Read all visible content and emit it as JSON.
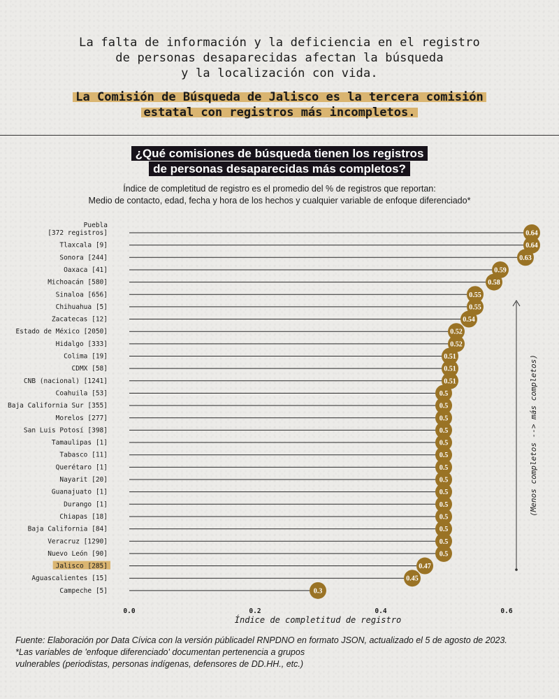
{
  "intro": {
    "lines": [
      "La falta de información y la deficiencia en el registro",
      "de personas desaparecidas afectan  la búsqueda",
      "y la localización con vida."
    ]
  },
  "highlight": {
    "lines": [
      "La Comisión de Búsqueda de Jalisco es la tercera comisión",
      "estatal con registros más incompletos."
    ]
  },
  "question": {
    "lines": [
      "¿Qué comisiones de búsqueda tienen los registros",
      "de personas desaparecidas más completos?"
    ]
  },
  "subtitle": {
    "lines": [
      "Índice de completitud de registro es el promedio del % de registros que reportan:",
      "Medio de contacto, edad, fecha y hora de los hechos y cualquier variable de enfoque diferenciado*"
    ]
  },
  "colors": {
    "accent": "#9a7325",
    "highlight": "#d4a349",
    "dark": "#17121a",
    "line": "#2a2a2a"
  },
  "chart_data": {
    "type": "lollipop",
    "title": "¿Qué comisiones de búsqueda tienen los registros de personas desaparecidas más completos?",
    "xlabel": "Índice de completitud de registro",
    "xlim": [
      0,
      0.6
    ],
    "xticks": [
      "0.0",
      "0.2",
      "0.4",
      "0.6"
    ],
    "side_annotation": "(Menos completos --> más completos)",
    "highlighted": "Jalisco [285]",
    "categories": [
      {
        "label": [
          "Puebla",
          "[372 registros]"
        ],
        "value": 0.64,
        "value_label": "0.64"
      },
      {
        "label": [
          "Tlaxcala [9]"
        ],
        "value": 0.64,
        "value_label": "0.64"
      },
      {
        "label": [
          "Sonora [244]"
        ],
        "value": 0.63,
        "value_label": "0.63"
      },
      {
        "label": [
          "Oaxaca [41]"
        ],
        "value": 0.59,
        "value_label": "0.59"
      },
      {
        "label": [
          "Michoacán [580]"
        ],
        "value": 0.58,
        "value_label": "0.58"
      },
      {
        "label": [
          "Sinaloa [656]"
        ],
        "value": 0.55,
        "value_label": "0.55"
      },
      {
        "label": [
          "Chihuahua [5]"
        ],
        "value": 0.55,
        "value_label": "0.55"
      },
      {
        "label": [
          "Zacatecas [12]"
        ],
        "value": 0.54,
        "value_label": "0.54"
      },
      {
        "label": [
          "Estado de México [2050]"
        ],
        "value": 0.52,
        "value_label": "0.52"
      },
      {
        "label": [
          "Hidalgo [333]"
        ],
        "value": 0.52,
        "value_label": "0.52"
      },
      {
        "label": [
          "Colima [19]"
        ],
        "value": 0.51,
        "value_label": "0.51"
      },
      {
        "label": [
          "CDMX [58]"
        ],
        "value": 0.51,
        "value_label": "0.51"
      },
      {
        "label": [
          "CNB (nacional) [1241]"
        ],
        "value": 0.51,
        "value_label": "0.51"
      },
      {
        "label": [
          "Coahuila [53]"
        ],
        "value": 0.5,
        "value_label": "0.5"
      },
      {
        "label": [
          "Baja California Sur [355]"
        ],
        "value": 0.5,
        "value_label": "0.5"
      },
      {
        "label": [
          "Morelos [277]"
        ],
        "value": 0.5,
        "value_label": "0.5"
      },
      {
        "label": [
          "San Luis Potosí [398]"
        ],
        "value": 0.5,
        "value_label": "0.5"
      },
      {
        "label": [
          "Tamaulipas [1]"
        ],
        "value": 0.5,
        "value_label": "0.5"
      },
      {
        "label": [
          "Tabasco [11]"
        ],
        "value": 0.5,
        "value_label": "0.5"
      },
      {
        "label": [
          "Querétaro [1]"
        ],
        "value": 0.5,
        "value_label": "0.5"
      },
      {
        "label": [
          "Nayarit [20]"
        ],
        "value": 0.5,
        "value_label": "0.5"
      },
      {
        "label": [
          "Guanajuato [1]"
        ],
        "value": 0.5,
        "value_label": "0.5"
      },
      {
        "label": [
          "Durango [1]"
        ],
        "value": 0.5,
        "value_label": "0.5"
      },
      {
        "label": [
          "Chiapas [18]"
        ],
        "value": 0.5,
        "value_label": "0.5"
      },
      {
        "label": [
          "Baja California [84]"
        ],
        "value": 0.5,
        "value_label": "0.5"
      },
      {
        "label": [
          "Veracruz [1290]"
        ],
        "value": 0.5,
        "value_label": "0.5"
      },
      {
        "label": [
          "Nuevo León [90]"
        ],
        "value": 0.5,
        "value_label": "0.5"
      },
      {
        "label": [
          "Jalisco [285]"
        ],
        "value": 0.47,
        "value_label": "0.47"
      },
      {
        "label": [
          "Aguascalientes [15]"
        ],
        "value": 0.45,
        "value_label": "0.45"
      },
      {
        "label": [
          "Campeche [5]"
        ],
        "value": 0.3,
        "value_label": "0.3"
      }
    ]
  },
  "footer": {
    "lines": [
      "Fuente: Elaboración por Data Cívica con la versión públicadel RNPDNO en formato JSON, actualizado el 5 de agosto de 2023.",
      "*Las variables de 'enfoque diferenciado' documentan pertenencia a grupos",
      "vulnerables (periodistas, personas indígenas, defensores de DD.HH., etc.)"
    ]
  }
}
